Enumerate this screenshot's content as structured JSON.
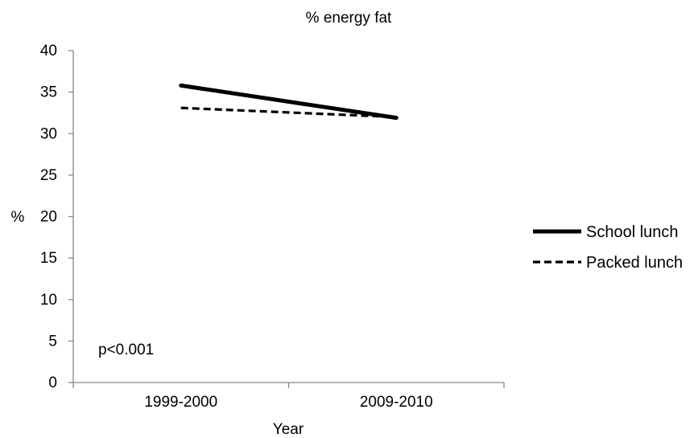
{
  "chart_data": {
    "type": "line",
    "title": "% energy fat",
    "xlabel": "Year",
    "ylabel": "%",
    "categories": [
      "1999-2000",
      "2009-2010"
    ],
    "ylim": [
      0,
      40
    ],
    "yticks": [
      0,
      5,
      10,
      15,
      20,
      25,
      30,
      35,
      40
    ],
    "grid": false,
    "legend_position": "right",
    "annotation": "p<0.001",
    "series": [
      {
        "name": "School lunch",
        "values": [
          35.8,
          31.9
        ],
        "style": "solid",
        "color": "#000000"
      },
      {
        "name": "Packed lunch",
        "values": [
          33.1,
          32.0
        ],
        "style": "dashed",
        "color": "#000000"
      }
    ]
  }
}
